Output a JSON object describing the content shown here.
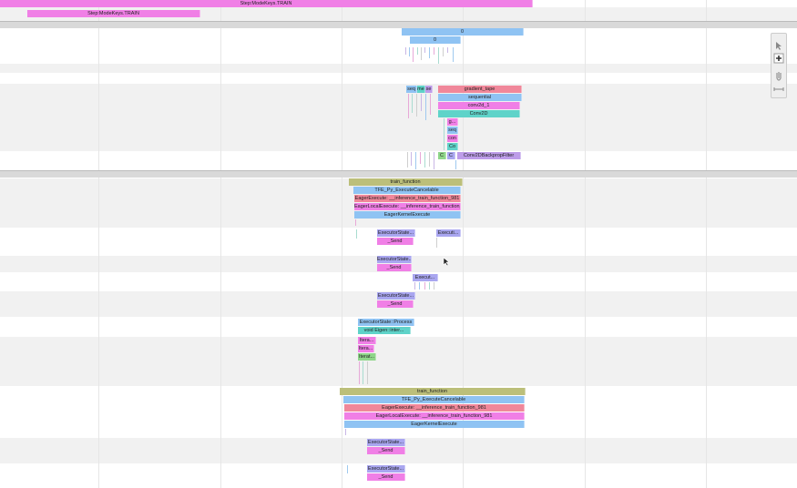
{
  "slices": [
    "Step:ModeKeys.TRAIN",
    "Step:ModeKeys.TRAIN",
    "0",
    "0",
    "seq",
    "me",
    "se",
    "gradient_tape",
    "sequential",
    "conv2d_1",
    "Conv2D",
    "g...",
    "seq",
    "con",
    "Co",
    "C",
    "C",
    "Conv2DBackpropFilter",
    "train_function",
    "TFE_Py_ExecuteCancelable",
    "EagerExecute: __inference_train_function_981",
    "EagerLocalExecute: __inference_train_function_981",
    "EagerKernelExecute",
    "ExecutorState...",
    "_Send",
    "Executi...",
    "ExecutorState...",
    "_Send",
    "Execut...",
    "ExecutorState...",
    "_Send",
    "ExecutorState::Process",
    "void Eigen::inter...",
    "Itera...",
    "Itera...",
    "Iterat...",
    "train_function",
    "TFE_Py_ExecuteCancelable",
    "EagerExecute: __inference_train_function_981",
    "EagerLocalExecute: __inference_train_function_981",
    "EagerKernelExecute",
    "ExecutorState...",
    "_Send",
    "ExecutorState...",
    "_Send"
  ]
}
